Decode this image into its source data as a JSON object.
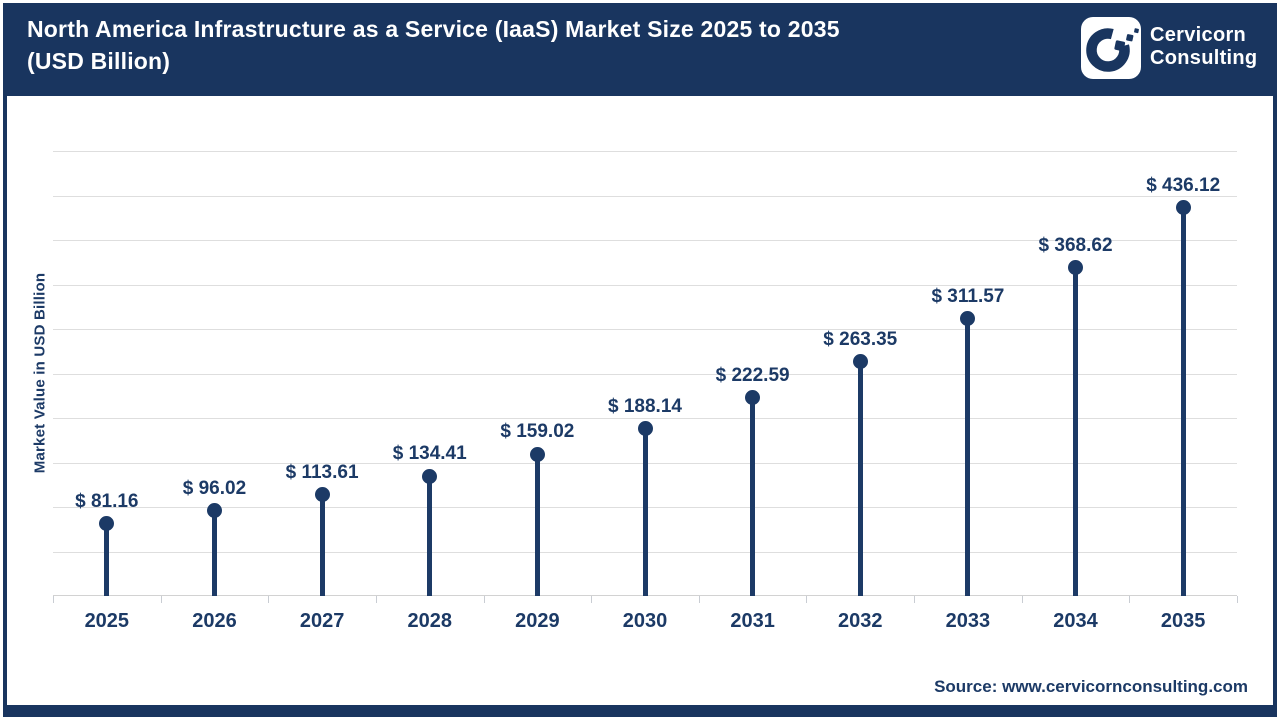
{
  "header": {
    "title_line1": "North America Infrastructure as a Service (IaaS) Market Size 2025 to 2035",
    "title_line2": "(USD Billion)",
    "brand_line1": "Cervicorn",
    "brand_line2": "Consulting"
  },
  "chart_data": {
    "type": "lollipop",
    "title": "North America Infrastructure as a Service (IaaS) Market Size 2025 to 2035 (USD Billion)",
    "ylabel": "Market Value in USD Billion",
    "xlabel": "",
    "categories": [
      "2025",
      "2026",
      "2027",
      "2028",
      "2029",
      "2030",
      "2031",
      "2032",
      "2033",
      "2034",
      "2035"
    ],
    "values": [
      81.16,
      96.02,
      113.61,
      134.41,
      159.02,
      188.14,
      222.59,
      263.35,
      311.57,
      368.62,
      436.12
    ],
    "value_labels": [
      "$ 81.16",
      "$ 96.02",
      "$ 113.61",
      "$ 134.41",
      "$ 159.02",
      "$ 188.14",
      "$ 222.59",
      "$ 263.35",
      "$ 311.57",
      "$ 368.62",
      "$ 436.12"
    ],
    "ylim": [
      0,
      500
    ],
    "grid_step": 50,
    "grid": "horizontal-only",
    "legend": "none",
    "y_tick_labels_visible": false
  },
  "footer": {
    "source": "Source: www.cervicornconsulting.com"
  },
  "colors": {
    "navy_header": "#19355F",
    "navy_marks": "#1C3A66",
    "gridline": "#dedede",
    "axis": "#d2d2d2",
    "background": "#ffffff",
    "title_text": "#ffffff"
  }
}
